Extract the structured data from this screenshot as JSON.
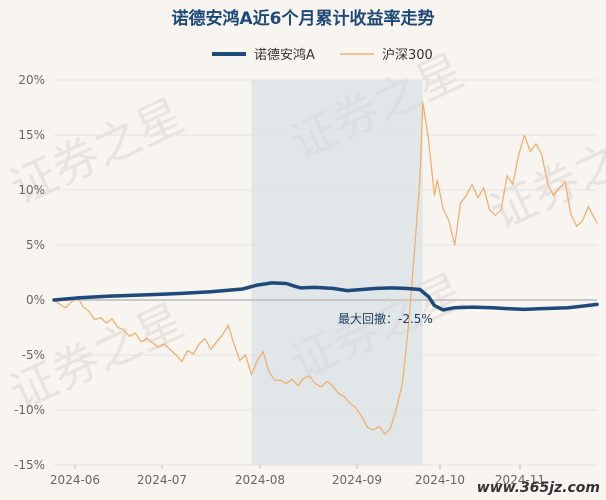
{
  "chart_data": {
    "type": "line",
    "title": "诺德安鸿A近6个月累计收益率走势",
    "legend": {
      "placement": "top-center"
    },
    "x_ticks": [
      "2024-06",
      "2024-07",
      "2024-08",
      "2024-09",
      "2024-10",
      "2024-11"
    ],
    "ylim": [
      -15,
      20
    ],
    "y_ticks": [
      "20%",
      "15%",
      "10%",
      "5%",
      "0%",
      "-5%",
      "-10%",
      "-15%"
    ],
    "grid": "horizontal",
    "annotation": {
      "text": "最大回撤：-2.5%",
      "shaded_from": "2024-08-03",
      "shaded_to": "2024-10-01"
    },
    "series": [
      {
        "name": "诺德安鸿A",
        "color": "#1d4a7a",
        "points": [
          [
            "2024-05-27",
            0.0
          ],
          [
            "2024-06-05",
            0.2
          ],
          [
            "2024-06-15",
            0.35
          ],
          [
            "2024-06-25",
            0.45
          ],
          [
            "2024-07-01",
            0.5
          ],
          [
            "2024-07-10",
            0.6
          ],
          [
            "2024-07-20",
            0.75
          ],
          [
            "2024-07-31",
            1.0
          ],
          [
            "2024-08-05",
            1.35
          ],
          [
            "2024-08-10",
            1.55
          ],
          [
            "2024-08-15",
            1.5
          ],
          [
            "2024-08-18",
            1.25
          ],
          [
            "2024-08-20",
            1.1
          ],
          [
            "2024-08-25",
            1.15
          ],
          [
            "2024-08-31",
            1.05
          ],
          [
            "2024-09-05",
            0.85
          ],
          [
            "2024-09-10",
            0.95
          ],
          [
            "2024-09-15",
            1.05
          ],
          [
            "2024-09-20",
            1.1
          ],
          [
            "2024-09-25",
            1.05
          ],
          [
            "2024-09-30",
            0.95
          ],
          [
            "2024-10-03",
            0.3
          ],
          [
            "2024-10-05",
            -0.5
          ],
          [
            "2024-10-08",
            -0.9
          ],
          [
            "2024-10-12",
            -0.7
          ],
          [
            "2024-10-18",
            -0.65
          ],
          [
            "2024-10-25",
            -0.7
          ],
          [
            "2024-10-31",
            -0.8
          ],
          [
            "2024-11-05",
            -0.85
          ],
          [
            "2024-11-10",
            -0.8
          ],
          [
            "2024-11-15",
            -0.75
          ],
          [
            "2024-11-20",
            -0.7
          ],
          [
            "2024-11-25",
            -0.55
          ],
          [
            "2024-11-30",
            -0.4
          ]
        ]
      },
      {
        "name": "沪深300",
        "color": "#f0b070",
        "points": [
          [
            "2024-05-27",
            0.0
          ],
          [
            "2024-05-29",
            -0.4
          ],
          [
            "2024-05-31",
            -0.7
          ],
          [
            "2024-06-02",
            -0.2
          ],
          [
            "2024-06-04",
            0.3
          ],
          [
            "2024-06-06",
            -0.6
          ],
          [
            "2024-06-08",
            -1.0
          ],
          [
            "2024-06-10",
            -1.8
          ],
          [
            "2024-06-12",
            -1.6
          ],
          [
            "2024-06-14",
            -2.1
          ],
          [
            "2024-06-16",
            -1.7
          ],
          [
            "2024-06-18",
            -2.5
          ],
          [
            "2024-06-20",
            -2.7
          ],
          [
            "2024-06-22",
            -3.3
          ],
          [
            "2024-06-24",
            -3.0
          ],
          [
            "2024-06-26",
            -3.8
          ],
          [
            "2024-06-28",
            -3.5
          ],
          [
            "2024-06-30",
            -3.9
          ],
          [
            "2024-07-02",
            -4.3
          ],
          [
            "2024-07-04",
            -4.0
          ],
          [
            "2024-07-06",
            -4.5
          ],
          [
            "2024-07-08",
            -5.0
          ],
          [
            "2024-07-10",
            -5.6
          ],
          [
            "2024-07-12",
            -4.6
          ],
          [
            "2024-07-14",
            -4.9
          ],
          [
            "2024-07-16",
            -4.0
          ],
          [
            "2024-07-18",
            -3.5
          ],
          [
            "2024-07-20",
            -4.5
          ],
          [
            "2024-07-22",
            -3.8
          ],
          [
            "2024-07-24",
            -3.2
          ],
          [
            "2024-07-26",
            -2.3
          ],
          [
            "2024-07-28",
            -4.0
          ],
          [
            "2024-07-30",
            -5.5
          ],
          [
            "2024-08-01",
            -5.0
          ],
          [
            "2024-08-03",
            -6.8
          ],
          [
            "2024-08-05",
            -5.5
          ],
          [
            "2024-08-07",
            -4.7
          ],
          [
            "2024-08-09",
            -6.5
          ],
          [
            "2024-08-11",
            -7.3
          ],
          [
            "2024-08-13",
            -7.3
          ],
          [
            "2024-08-15",
            -7.6
          ],
          [
            "2024-08-17",
            -7.2
          ],
          [
            "2024-08-19",
            -7.8
          ],
          [
            "2024-08-21",
            -7.1
          ],
          [
            "2024-08-23",
            -6.9
          ],
          [
            "2024-08-25",
            -7.6
          ],
          [
            "2024-08-27",
            -7.9
          ],
          [
            "2024-08-29",
            -7.4
          ],
          [
            "2024-08-31",
            -7.8
          ],
          [
            "2024-09-02",
            -8.5
          ],
          [
            "2024-09-04",
            -8.8
          ],
          [
            "2024-09-06",
            -9.4
          ],
          [
            "2024-09-08",
            -9.8
          ],
          [
            "2024-09-10",
            -10.6
          ],
          [
            "2024-09-12",
            -11.6
          ],
          [
            "2024-09-14",
            -11.8
          ],
          [
            "2024-09-16",
            -11.5
          ],
          [
            "2024-09-18",
            -12.2
          ],
          [
            "2024-09-20",
            -11.6
          ],
          [
            "2024-09-22",
            -9.8
          ],
          [
            "2024-09-24",
            -7.6
          ],
          [
            "2024-09-26",
            -2.5
          ],
          [
            "2024-09-28",
            4.0
          ],
          [
            "2024-09-30",
            11.0
          ],
          [
            "2024-10-01",
            18.0
          ],
          [
            "2024-10-03",
            14.5
          ],
          [
            "2024-10-05",
            9.5
          ],
          [
            "2024-10-06",
            10.9
          ],
          [
            "2024-10-08",
            8.3
          ],
          [
            "2024-10-10",
            7.2
          ],
          [
            "2024-10-12",
            5.0
          ],
          [
            "2024-10-14",
            8.8
          ],
          [
            "2024-10-16",
            9.5
          ],
          [
            "2024-10-18",
            10.5
          ],
          [
            "2024-10-20",
            9.3
          ],
          [
            "2024-10-22",
            10.2
          ],
          [
            "2024-10-24",
            8.2
          ],
          [
            "2024-10-26",
            7.7
          ],
          [
            "2024-10-28",
            8.2
          ],
          [
            "2024-10-30",
            11.3
          ],
          [
            "2024-11-01",
            10.5
          ],
          [
            "2024-11-03",
            13.2
          ],
          [
            "2024-11-05",
            15.0
          ],
          [
            "2024-11-07",
            13.5
          ],
          [
            "2024-11-09",
            14.2
          ],
          [
            "2024-11-11",
            13.2
          ],
          [
            "2024-11-13",
            10.6
          ],
          [
            "2024-11-15",
            9.5
          ],
          [
            "2024-11-17",
            10.2
          ],
          [
            "2024-11-19",
            10.7
          ],
          [
            "2024-11-21",
            7.8
          ],
          [
            "2024-11-23",
            6.7
          ],
          [
            "2024-11-25",
            7.2
          ],
          [
            "2024-11-27",
            8.5
          ],
          [
            "2024-11-30",
            7.0
          ]
        ]
      }
    ]
  },
  "watermark": {
    "text": "证券之星",
    "site": "www.365jz.com"
  }
}
